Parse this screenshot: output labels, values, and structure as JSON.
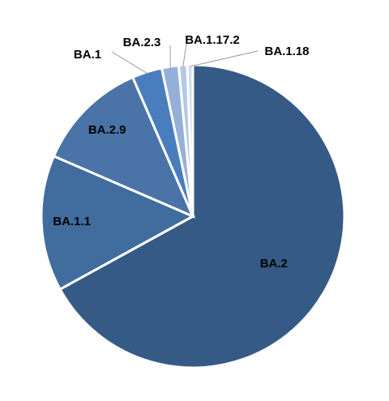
{
  "chart_data": {
    "type": "pie",
    "title": "",
    "slices": [
      {
        "label": "BA.2",
        "value": 67.0,
        "color": "#355a85"
      },
      {
        "label": "BA.1.1",
        "value": 14.5,
        "color": "#416c9e"
      },
      {
        "label": "BA.2.9",
        "value": 12.0,
        "color": "#4a74a8"
      },
      {
        "label": "BA.1",
        "value": 3.2,
        "color": "#4a7dbd"
      },
      {
        "label": "BA.2.3",
        "value": 1.8,
        "color": "#95b0d8"
      },
      {
        "label": "BA.1.17.2",
        "value": 0.9,
        "color": "#b4c8e4"
      },
      {
        "label": "BA.1.18",
        "value": 0.6,
        "color": "#cfdcef"
      }
    ],
    "legend": "none",
    "data_labels": "category names"
  }
}
